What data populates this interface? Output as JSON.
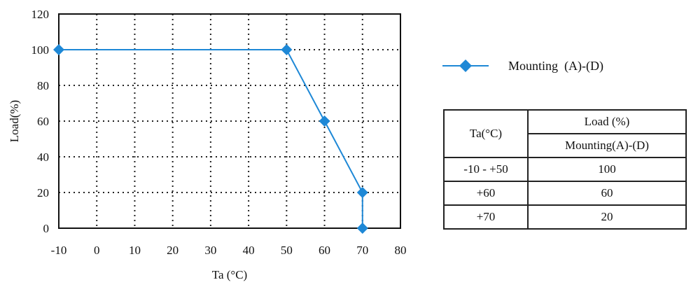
{
  "chart_data": {
    "type": "line",
    "xlabel": "Ta (°C)",
    "ylabel": "Load(%)",
    "xlim": [
      -10,
      80
    ],
    "ylim": [
      0,
      120
    ],
    "x_ticks": [
      -10,
      0,
      10,
      20,
      30,
      40,
      50,
      60,
      70,
      80
    ],
    "y_ticks": [
      0,
      20,
      40,
      60,
      80,
      100,
      120
    ],
    "grid": true,
    "legend_position": "right",
    "series": [
      {
        "name": "Mounting  (A)-(D)",
        "color": "#1e88d6",
        "marker": "diamond",
        "x": [
          -10,
          50,
          60,
          70,
          70
        ],
        "y": [
          100,
          100,
          60,
          20,
          0
        ]
      }
    ]
  },
  "legend": {
    "label": "Mounting  (A)-(D)"
  },
  "table": {
    "header_col1": "Ta(°C)",
    "header_load": "Load (%)",
    "header_mounting": "Mounting(A)-(D)",
    "rows": [
      {
        "ta": "-10 - +50",
        "load": "100"
      },
      {
        "ta": "+60",
        "load": "60"
      },
      {
        "ta": "+70",
        "load": "20"
      }
    ]
  }
}
